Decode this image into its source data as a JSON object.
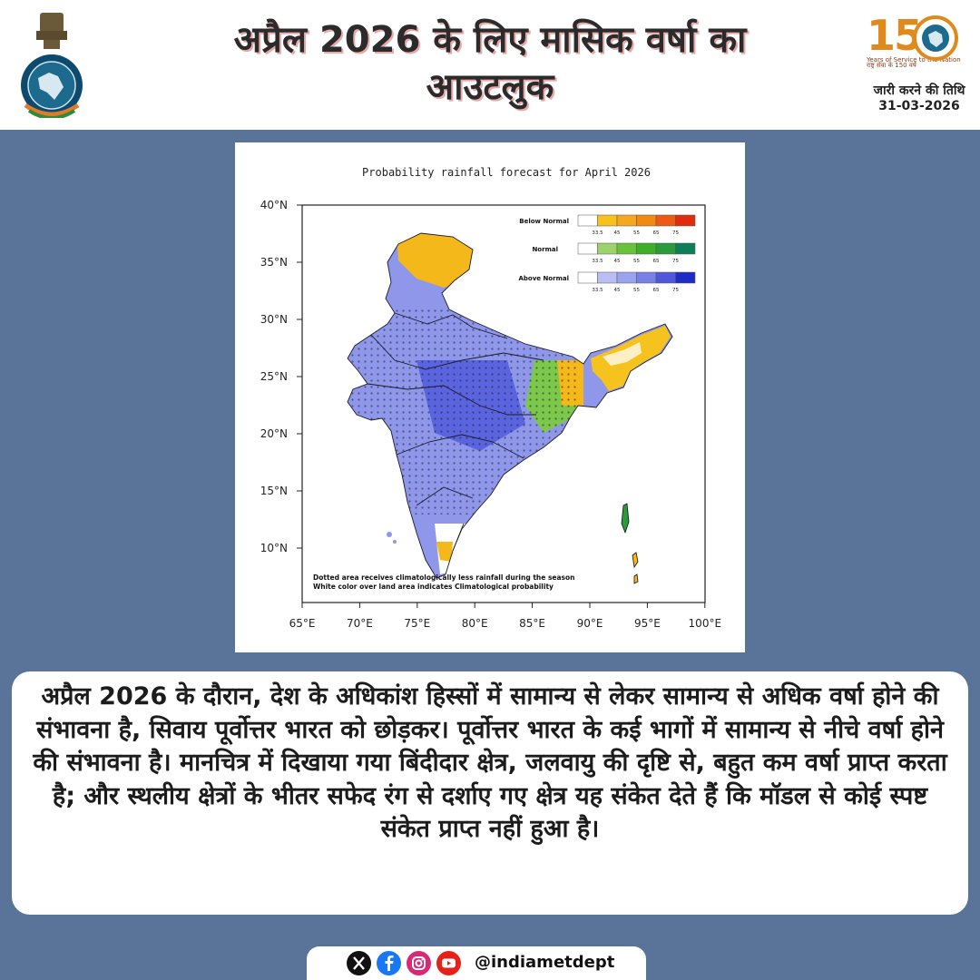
{
  "header": {
    "title_line1": "अप्रैल 2026 के लिए मासिक वर्षा का",
    "title_line2": "आउटलुक",
    "anniversary": {
      "number": "150",
      "tagline": "Years of Service to the Nation",
      "subtag": "राष्ट्र सेवा के 150 वर्ष"
    },
    "issue_label": "जारी करने की तिथि",
    "issue_date": "31-03-2026"
  },
  "map": {
    "title": "Probability rainfall forecast for April 2026",
    "lat_labels": [
      "40°N",
      "35°N",
      "30°N",
      "25°N",
      "20°N",
      "15°N",
      "10°N"
    ],
    "lon_labels": [
      "65°E",
      "70°E",
      "75°E",
      "80°E",
      "85°E",
      "90°E",
      "95°E",
      "100°E"
    ],
    "legend": [
      {
        "label": "Below Normal",
        "colors": [
          "#ffffff",
          "#f8c21a",
          "#f5a81b",
          "#f28a10",
          "#ee5a14",
          "#e22b0e"
        ]
      },
      {
        "label": "Normal",
        "colors": [
          "#ffffff",
          "#9bd36a",
          "#6ac23b",
          "#3fae2a",
          "#2a9a3c",
          "#0d7f58"
        ]
      },
      {
        "label": "Above Normal",
        "colors": [
          "#ffffff",
          "#b9bff2",
          "#9aa3ee",
          "#7680e6",
          "#4f58db",
          "#1c2cc4"
        ]
      }
    ],
    "legend_ticks": [
      "33.5",
      "45",
      "55",
      "65",
      "75"
    ],
    "note_line1": "Dotted area receives climatologically less rainfall during the season",
    "note_line2": "White color over land area indicates Climatological probability"
  },
  "description": "अप्रैल 2026 के दौरान, देश के अधिकांश हिस्सों में सामान्य से लेकर सामान्य से अधिक वर्षा होने की संभावना है, सिवाय पूर्वोत्तर भारत को छोड़कर। पूर्वोत्तर भारत के कई भागों में सामान्य से नीचे वर्षा होने की संभावना है। मानचित्र में दिखाया गया बिंदीदार क्षेत्र, जलवायु की दृष्टि से, बहुत कम वर्षा प्राप्त करता है; और स्थलीय क्षेत्रों के भीतर सफेद रंग से दर्शाए गए क्षेत्र यह संकेत देते हैं कि मॉडल से कोई स्पष्ट संकेत प्राप्त नहीं हुआ है।",
  "social": {
    "handle": "@indiametdept",
    "icons": [
      "x-icon",
      "facebook-icon",
      "instagram-icon",
      "youtube-icon"
    ]
  }
}
